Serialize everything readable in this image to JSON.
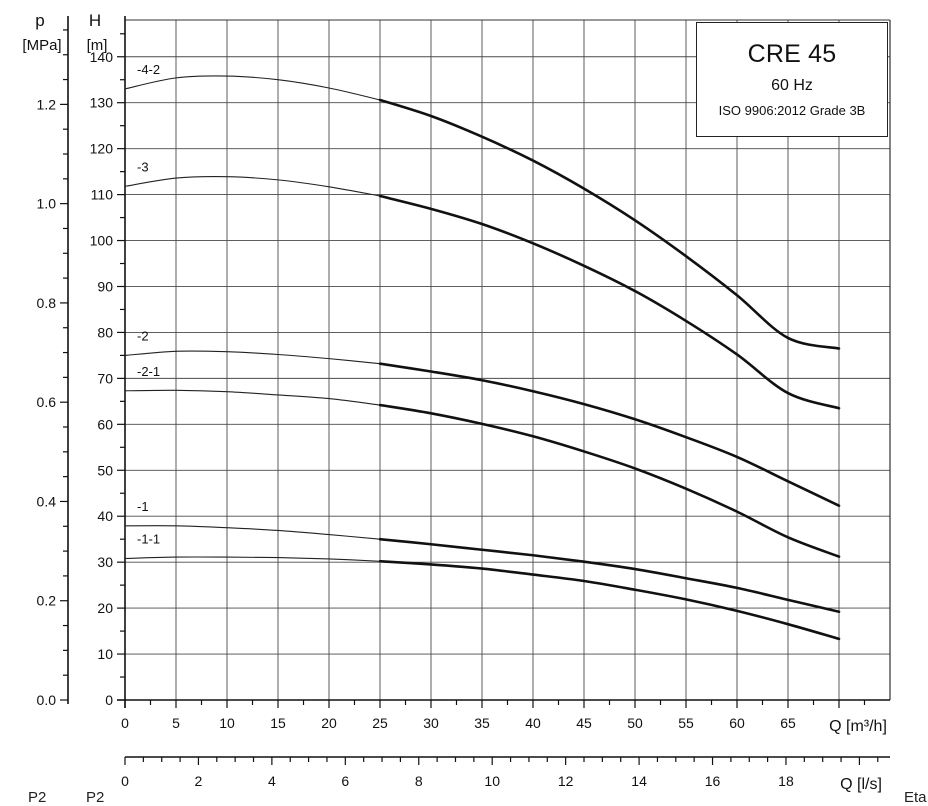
{
  "chart_data": {
    "type": "line",
    "title": "CRE 45",
    "subtitle": "60 Hz",
    "standard": "ISO 9906:2012 Grade 3B",
    "p_axis": {
      "label_symbol": "p",
      "label_unit": "[MPa]",
      "range": [
        0,
        1.37
      ],
      "ticks": [
        "0.0",
        "0.2",
        "0.4",
        "0.6",
        "0.8",
        "1.0",
        "1.2"
      ],
      "tick_values": [
        0,
        0.2,
        0.4,
        0.6,
        0.8,
        1.0,
        1.2
      ]
    },
    "y_axis": {
      "label_symbol": "H",
      "label_unit": "[m]",
      "range": [
        0,
        148
      ],
      "ticks": [
        "0",
        "10",
        "20",
        "30",
        "40",
        "50",
        "60",
        "70",
        "80",
        "90",
        "100",
        "110",
        "120",
        "130",
        "140"
      ],
      "tick_values": [
        0,
        10,
        20,
        30,
        40,
        50,
        60,
        70,
        80,
        90,
        100,
        110,
        120,
        130,
        140
      ]
    },
    "x_axis": {
      "label": "Q [m³/h]",
      "range": [
        0,
        75
      ],
      "ticks": [
        "0",
        "5",
        "10",
        "15",
        "20",
        "25",
        "30",
        "35",
        "40",
        "45",
        "50",
        "55",
        "60",
        "65"
      ],
      "tick_values": [
        0,
        5,
        10,
        15,
        20,
        25,
        30,
        35,
        40,
        45,
        50,
        55,
        60,
        65
      ]
    },
    "x2_axis": {
      "label": "Q [l/s]",
      "range": [
        0,
        20.833
      ],
      "ticks": [
        "0",
        "2",
        "4",
        "6",
        "8",
        "10",
        "12",
        "14",
        "16",
        "18"
      ],
      "tick_values": [
        0,
        2,
        4,
        6,
        8,
        10,
        12,
        14,
        16,
        18
      ]
    },
    "grid": true,
    "operating_range_start": 25,
    "series": [
      {
        "name": "-4-2",
        "x": [
          0,
          5,
          10,
          15,
          20,
          25,
          30,
          35,
          40,
          45,
          50,
          55,
          60,
          65,
          70
        ],
        "y": [
          133,
          135.4,
          135.8,
          135,
          133.2,
          130.6,
          127.1,
          122.6,
          117.4,
          111.3,
          104.4,
          96.6,
          88.1,
          78.8,
          76.5
        ]
      },
      {
        "name": "-3",
        "x": [
          0,
          5,
          10,
          15,
          20,
          25,
          30,
          35,
          40,
          45,
          50,
          55,
          60,
          65,
          70
        ],
        "y": [
          111.8,
          113.6,
          113.9,
          113.2,
          111.7,
          109.7,
          106.9,
          103.6,
          99.4,
          94.5,
          89,
          82.5,
          75.2,
          66.8,
          63.5
        ]
      },
      {
        "name": "-2",
        "x": [
          0,
          5,
          10,
          15,
          20,
          25,
          30,
          35,
          40,
          45,
          50,
          55,
          60,
          65,
          70
        ],
        "y": [
          75,
          75.9,
          75.8,
          75.2,
          74.3,
          73.2,
          71.5,
          69.6,
          67.2,
          64.4,
          61.1,
          57.2,
          52.9,
          47.6,
          42.3
        ]
      },
      {
        "name": "-2-1",
        "x": [
          0,
          5,
          10,
          15,
          20,
          25,
          30,
          35,
          40,
          45,
          50,
          55,
          60,
          65,
          70
        ],
        "y": [
          67.3,
          67.4,
          67.1,
          66.4,
          65.6,
          64.2,
          62.4,
          60.1,
          57.4,
          54.1,
          50.4,
          46,
          41,
          35.4,
          31.2
        ]
      },
      {
        "name": "-1",
        "x": [
          0,
          5,
          10,
          15,
          20,
          25,
          30,
          35,
          40,
          45,
          50,
          55,
          60,
          65,
          70
        ],
        "y": [
          37.9,
          37.9,
          37.5,
          36.9,
          36,
          35,
          33.9,
          32.7,
          31.5,
          30.1,
          28.5,
          26.5,
          24.4,
          21.8,
          19.2
        ]
      },
      {
        "name": "-1-1",
        "x": [
          0,
          5,
          10,
          15,
          20,
          25,
          30,
          35,
          40,
          45,
          50,
          55,
          60,
          65,
          70
        ],
        "y": [
          30.8,
          31.1,
          31.1,
          31,
          30.7,
          30.2,
          29.5,
          28.6,
          27.3,
          25.9,
          24,
          21.9,
          19.4,
          16.5,
          13.3
        ]
      }
    ]
  },
  "corner_labels": [
    "P2",
    "P2",
    "Eta"
  ]
}
